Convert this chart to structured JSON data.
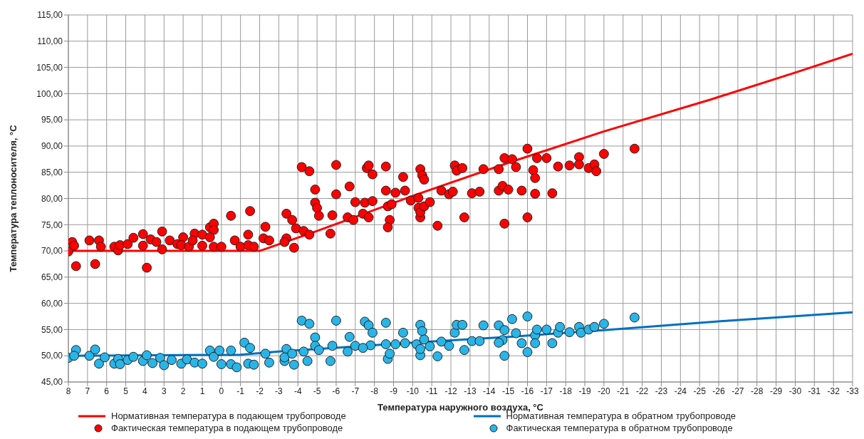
{
  "chart_data": {
    "type": "scatter",
    "xlabel": "Температура наружного воздуха, °С",
    "ylabel": "Температура теплоносителя, °С",
    "xlim": [
      8,
      -33
    ],
    "xticks": [
      8,
      7,
      6,
      5,
      4,
      3,
      2,
      1,
      0,
      -1,
      -2,
      -3,
      -4,
      -5,
      -6,
      -7,
      -8,
      -9,
      -10,
      -11,
      -12,
      -13,
      -14,
      -15,
      -16,
      -17,
      -18,
      -19,
      -20,
      -21,
      -22,
      -23,
      -24,
      -25,
      -26,
      -27,
      -28,
      -29,
      -30,
      -31,
      -32,
      -33
    ],
    "ylim": [
      45,
      115
    ],
    "yticks": [
      {
        "value": 45,
        "label": "45,00"
      },
      {
        "value": 50,
        "label": "50,00"
      },
      {
        "value": 55,
        "label": "55,00"
      },
      {
        "value": 60,
        "label": "60,00"
      },
      {
        "value": 65,
        "label": "65,00"
      },
      {
        "value": 70,
        "label": "70,00"
      },
      {
        "value": 75,
        "label": "75,00"
      },
      {
        "value": 80,
        "label": "80,00"
      },
      {
        "value": 85,
        "label": "85,00"
      },
      {
        "value": 90,
        "label": "90,00"
      },
      {
        "value": 95,
        "label": "95,00"
      },
      {
        "value": 100,
        "label": "100,00"
      },
      {
        "value": 105,
        "label": "105,00"
      },
      {
        "value": 110,
        "label": "110,00"
      },
      {
        "value": 115,
        "label": "115,00"
      }
    ],
    "grid": true,
    "legend": "bottom",
    "series": [
      {
        "name": "Нормативная температура в подающем трубопроводе",
        "type": "line",
        "color": "#ff0000",
        "marker": "none",
        "line_style": "solid",
        "x": [
          8,
          -2,
          -5,
          -10,
          -15,
          -20,
          -25.6,
          -30,
          -33
        ],
        "values": [
          70,
          70,
          73.8,
          80.5,
          86.8,
          92.8,
          98.9,
          104,
          107.6
        ]
      },
      {
        "name": "Нормативная температура в обратном трубопроводе",
        "type": "line",
        "color": "#0070c0",
        "marker": "none",
        "line_style": "solid",
        "x": [
          8,
          -1,
          -3,
          -10,
          -15,
          -20,
          -26.5,
          -33
        ],
        "values": [
          50,
          50.2,
          50.8,
          52.5,
          53.6,
          54.9,
          56.7,
          58.3
        ]
      },
      {
        "name": "Фактическая температура в подающем трубопроводе",
        "color": "#ff0000",
        "marker": "circle",
        "x": [
          8.0,
          7.8,
          7.7,
          7.6,
          6.9,
          6.6,
          6.4,
          6.3,
          5.6,
          5.4,
          5.3,
          4.9,
          4.6,
          4.1,
          4.1,
          3.9,
          3.7,
          3.4,
          3.1,
          3.1,
          2.7,
          2.3,
          2.0,
          2.1,
          1.7,
          1.4,
          1.5,
          1.0,
          1.0,
          0.6,
          0.4,
          0.4,
          0.6,
          0.4,
          0.0,
          -0.5,
          -0.7,
          -1.0,
          -1.4,
          -1.5,
          -1.4,
          -1.7,
          -2.2,
          -2.3,
          -2.5,
          -3.4,
          -3.4,
          -3.3,
          -3.8,
          -3.7,
          -3.9,
          -4.3,
          -4.6,
          -4.2,
          -4.6,
          -4.9,
          -4.9,
          -5.0,
          -5.1,
          -5.7,
          -5.8,
          -6.0,
          -6.0,
          -6.7,
          -6.6,
          -6.9,
          -7.0,
          -7.5,
          -7.6,
          -7.7,
          -7.9,
          -7.9,
          -7.4,
          -7.7,
          -8.6,
          -8.6,
          -9.1,
          -8.7,
          -8.9,
          -8.8,
          -8.7,
          -9.5,
          -9.6,
          -9.9,
          -10.3,
          -10.3,
          -10.4,
          -10.5,
          -10.6,
          -10.4,
          -10.4,
          -10.6,
          -10.9,
          -11.3,
          -11.5,
          -11.9,
          -12.1,
          -12.2,
          -12.3,
          -12.6,
          -12.7,
          -13.1,
          -13.5,
          -13.7,
          -14.5,
          -14.5,
          -14.7,
          -14.8,
          -14.8,
          -15.2,
          -15.4,
          -15.0,
          -15.7,
          -16.0,
          -16.0,
          -16.3,
          -16.4,
          -16.4,
          -16.5,
          -17.0,
          -17.3,
          -17.6,
          -18.2,
          -18.7,
          -18.7,
          -19.2,
          -19.5,
          -19.6,
          -20.0,
          -21.6
        ],
        "values": [
          69.9,
          71.7,
          71.0,
          67.1,
          72.0,
          67.5,
          72.0,
          70.8,
          70.8,
          70.1,
          71.1,
          71.3,
          72.5,
          71.0,
          73.2,
          66.8,
          72.2,
          71.7,
          73.7,
          70.3,
          72.0,
          71.3,
          72.6,
          71.1,
          70.8,
          73.3,
          72.0,
          73.1,
          71.0,
          74.5,
          75.2,
          74.0,
          72.6,
          70.8,
          70.8,
          76.7,
          72.0,
          70.8,
          73.1,
          77.6,
          71.1,
          70.8,
          72.4,
          74.6,
          72.0,
          77.1,
          72.4,
          71.7,
          70.6,
          75.9,
          74.3,
          73.8,
          73.1,
          86.0,
          85.2,
          81.7,
          79.2,
          78.2,
          76.7,
          73.3,
          76.8,
          86.4,
          80.8,
          82.3,
          76.4,
          75.9,
          79.3,
          79.2,
          85.8,
          86.3,
          79.5,
          84.6,
          77.1,
          76.4,
          86.1,
          81.5,
          81.1,
          78.5,
          78.9,
          75.9,
          74.5,
          84.1,
          81.5,
          79.6,
          80.1,
          78.2,
          85.6,
          84.4,
          83.6,
          76.4,
          77.4,
          78.5,
          79.3,
          74.8,
          81.5,
          80.8,
          81.3,
          86.3,
          85.3,
          85.8,
          76.4,
          81.0,
          81.3,
          85.6,
          85.6,
          81.5,
          82.4,
          87.7,
          75.2,
          87.5,
          86.0,
          81.7,
          81.5,
          89.5,
          76.4,
          85.4,
          83.9,
          80.9,
          87.7,
          87.7,
          81.0,
          86.1,
          86.3,
          87.9,
          86.5,
          85.8,
          86.5,
          85.2,
          88.5,
          89.5
        ]
      },
      {
        "name": "Фактическая температура в обратном трубопроводе",
        "color": "#29b5e8",
        "marker": "circle",
        "x": [
          8.0,
          7.6,
          7.7,
          6.9,
          6.6,
          6.4,
          6.1,
          5.6,
          5.4,
          5.3,
          4.9,
          4.6,
          4.1,
          3.9,
          3.6,
          3.2,
          3.0,
          2.6,
          2.1,
          1.8,
          1.4,
          1.0,
          0.6,
          0.4,
          0.1,
          0.0,
          -0.5,
          -0.5,
          -0.8,
          -1.2,
          -1.5,
          -1.4,
          -1.7,
          -2.3,
          -2.5,
          -3.4,
          -3.3,
          -3.3,
          -3.8,
          -3.7,
          -4.2,
          -4.6,
          -4.3,
          -4.5,
          -4.9,
          -4.9,
          -5.1,
          -5.7,
          -5.8,
          -6.0,
          -6.7,
          -6.6,
          -7.0,
          -7.5,
          -7.7,
          -7.9,
          -7.8,
          -7.4,
          -8.6,
          -8.6,
          -9.1,
          -8.7,
          -8.8,
          -9.5,
          -9.6,
          -10.2,
          -10.4,
          -10.5,
          -10.6,
          -10.4,
          -10.4,
          -10.9,
          -11.3,
          -11.5,
          -11.9,
          -12.2,
          -12.3,
          -12.6,
          -12.7,
          -13.1,
          -13.5,
          -13.7,
          -14.5,
          -14.8,
          -14.7,
          -14.5,
          -14.8,
          -15.2,
          -15.4,
          -15.7,
          -16.0,
          -16.0,
          -16.4,
          -16.4,
          -16.5,
          -17.0,
          -17.3,
          -17.6,
          -17.7,
          -18.2,
          -18.7,
          -18.8,
          -19.2,
          -19.5,
          -20.0,
          -21.6
        ],
        "values": [
          49.6,
          51.1,
          50.0,
          50.0,
          51.2,
          48.5,
          49.7,
          48.5,
          49.4,
          48.4,
          49.2,
          49.8,
          49.0,
          50.1,
          48.6,
          49.6,
          48.2,
          49.2,
          48.5,
          49.3,
          48.7,
          48.5,
          51.0,
          49.8,
          51.0,
          48.4,
          51.0,
          48.4,
          47.8,
          52.5,
          51.5,
          48.5,
          48.3,
          50.4,
          48.7,
          51.3,
          49.0,
          49.7,
          48.3,
          50.4,
          56.7,
          56.1,
          50.8,
          49.0,
          53.5,
          51.9,
          51.1,
          49.0,
          51.9,
          56.7,
          53.6,
          50.8,
          51.9,
          56.5,
          55.8,
          54.4,
          52.0,
          51.5,
          56.3,
          52.2,
          52.2,
          49.4,
          50.4,
          54.4,
          52.4,
          52.2,
          55.9,
          54.7,
          53.1,
          50.1,
          51.3,
          51.8,
          49.9,
          52.7,
          51.9,
          54.4,
          55.9,
          55.9,
          51.1,
          52.8,
          52.8,
          55.8,
          55.8,
          54.9,
          53.0,
          52.5,
          50.0,
          57.0,
          54.3,
          52.4,
          57.5,
          50.7,
          53.9,
          52.4,
          55.0,
          55.0,
          52.4,
          54.4,
          55.5,
          54.5,
          55.5,
          54.4,
          55.0,
          55.5,
          56.1,
          57.3
        ]
      }
    ]
  }
}
